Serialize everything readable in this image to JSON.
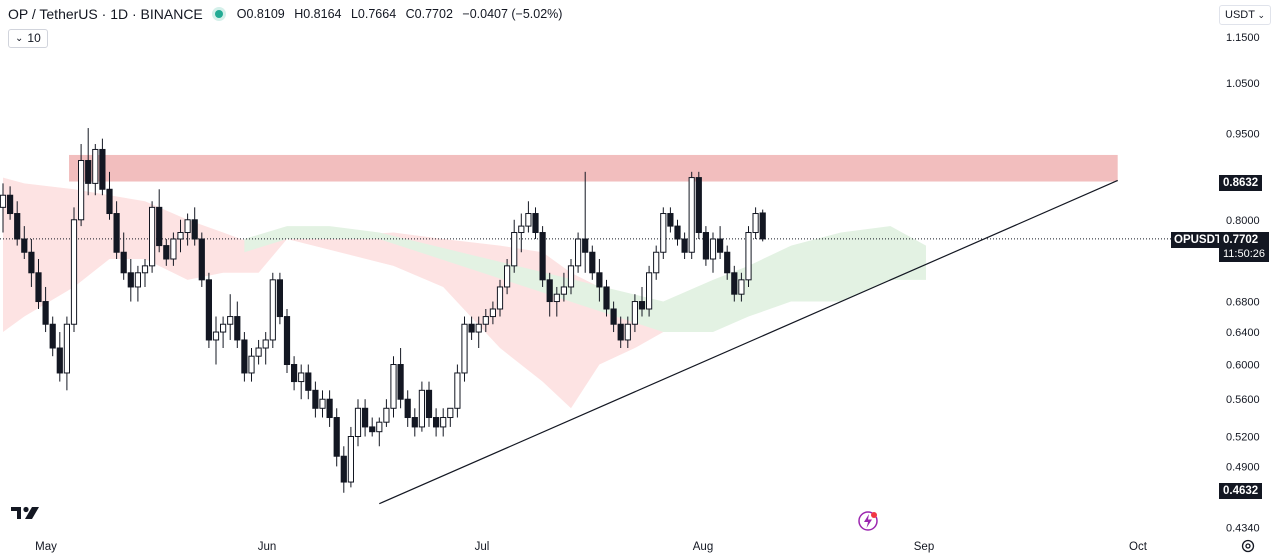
{
  "header": {
    "symbol": "OP / TetherUS · 1D · BINANCE",
    "o_label": "O",
    "o_value": "0.8109",
    "h_label": "H",
    "h_value": "0.8164",
    "l_label": "L",
    "l_value": "0.7664",
    "c_label": "C",
    "c_value": "0.7702",
    "change": "−0.0407 (−5.02%)",
    "indicator_count": "10",
    "currency": "USDT"
  },
  "price_tags": {
    "resistance_value": "0.8632",
    "symbol_tag": "OPUSDT",
    "last_value": "0.7702",
    "countdown": "11:50:26",
    "low_value": "0.4632"
  },
  "colors": {
    "up": "#131722",
    "down": "#131722",
    "resistance_zone": "#f0b3b3",
    "cloud_bear": "#fde3e3",
    "cloud_bull": "#e3f2e3",
    "trendline": "#131722"
  },
  "icons": {
    "logo": "tradingview-logo-icon",
    "settings": "gear-icon",
    "alert": "lightning-icon"
  },
  "chart_data": {
    "type": "candlestick",
    "scale": "log",
    "ylim": [
      0.425,
      1.19
    ],
    "y_ticks": [
      "1.1500",
      "1.0500",
      "0.9500",
      "0.8000",
      "0.6800",
      "0.6400",
      "0.6000",
      "0.5600",
      "0.5200",
      "0.4900",
      "0.4340"
    ],
    "x_ticks": [
      "May",
      "Jun",
      "Jul",
      "Aug",
      "Sep",
      "Oct"
    ],
    "last_close": 0.7702,
    "resistance_zone": [
      0.8632,
      0.91
    ],
    "trendline": [
      {
        "day": 3,
        "value": 0.455
      },
      {
        "day": 131,
        "value": 0.865
      }
    ],
    "candles": [
      [
        0.82,
        0.86,
        0.78,
        0.84
      ],
      [
        0.84,
        0.855,
        0.8,
        0.81
      ],
      [
        0.81,
        0.83,
        0.76,
        0.77
      ],
      [
        0.77,
        0.79,
        0.74,
        0.75
      ],
      [
        0.75,
        0.77,
        0.7,
        0.72
      ],
      [
        0.72,
        0.74,
        0.67,
        0.68
      ],
      [
        0.68,
        0.7,
        0.64,
        0.65
      ],
      [
        0.65,
        0.66,
        0.61,
        0.62
      ],
      [
        0.62,
        0.64,
        0.58,
        0.59
      ],
      [
        0.59,
        0.66,
        0.57,
        0.65
      ],
      [
        0.65,
        0.82,
        0.64,
        0.8
      ],
      [
        0.8,
        0.93,
        0.79,
        0.9
      ],
      [
        0.9,
        0.96,
        0.84,
        0.86
      ],
      [
        0.86,
        0.93,
        0.84,
        0.92
      ],
      [
        0.92,
        0.94,
        0.84,
        0.85
      ],
      [
        0.85,
        0.88,
        0.8,
        0.81
      ],
      [
        0.81,
        0.83,
        0.74,
        0.75
      ],
      [
        0.75,
        0.78,
        0.71,
        0.72
      ],
      [
        0.72,
        0.74,
        0.68,
        0.7
      ],
      [
        0.7,
        0.73,
        0.68,
        0.72
      ],
      [
        0.72,
        0.74,
        0.7,
        0.73
      ],
      [
        0.73,
        0.83,
        0.72,
        0.82
      ],
      [
        0.82,
        0.85,
        0.75,
        0.76
      ],
      [
        0.76,
        0.77,
        0.73,
        0.74
      ],
      [
        0.74,
        0.78,
        0.73,
        0.77
      ],
      [
        0.77,
        0.8,
        0.75,
        0.78
      ],
      [
        0.78,
        0.81,
        0.76,
        0.8
      ],
      [
        0.8,
        0.82,
        0.76,
        0.77
      ],
      [
        0.77,
        0.78,
        0.7,
        0.71
      ],
      [
        0.71,
        0.72,
        0.62,
        0.63
      ],
      [
        0.63,
        0.66,
        0.6,
        0.64
      ],
      [
        0.64,
        0.66,
        0.62,
        0.65
      ],
      [
        0.65,
        0.69,
        0.63,
        0.66
      ],
      [
        0.66,
        0.68,
        0.62,
        0.63
      ],
      [
        0.63,
        0.64,
        0.58,
        0.59
      ],
      [
        0.59,
        0.62,
        0.58,
        0.61
      ],
      [
        0.61,
        0.63,
        0.6,
        0.62
      ],
      [
        0.62,
        0.64,
        0.6,
        0.63
      ],
      [
        0.63,
        0.72,
        0.62,
        0.71
      ],
      [
        0.71,
        0.72,
        0.65,
        0.66
      ],
      [
        0.66,
        0.67,
        0.59,
        0.6
      ],
      [
        0.6,
        0.61,
        0.57,
        0.58
      ],
      [
        0.58,
        0.6,
        0.56,
        0.59
      ],
      [
        0.59,
        0.6,
        0.56,
        0.57
      ],
      [
        0.57,
        0.58,
        0.54,
        0.55
      ],
      [
        0.55,
        0.57,
        0.54,
        0.56
      ],
      [
        0.56,
        0.57,
        0.53,
        0.54
      ],
      [
        0.54,
        0.55,
        0.49,
        0.5
      ],
      [
        0.5,
        0.51,
        0.465,
        0.475
      ],
      [
        0.475,
        0.53,
        0.47,
        0.52
      ],
      [
        0.52,
        0.56,
        0.51,
        0.55
      ],
      [
        0.55,
        0.56,
        0.52,
        0.53
      ],
      [
        0.53,
        0.54,
        0.52,
        0.525
      ],
      [
        0.525,
        0.54,
        0.51,
        0.535
      ],
      [
        0.535,
        0.56,
        0.53,
        0.55
      ],
      [
        0.55,
        0.61,
        0.54,
        0.6
      ],
      [
        0.6,
        0.62,
        0.55,
        0.56
      ],
      [
        0.56,
        0.57,
        0.53,
        0.54
      ],
      [
        0.54,
        0.55,
        0.52,
        0.53
      ],
      [
        0.53,
        0.58,
        0.525,
        0.57
      ],
      [
        0.57,
        0.58,
        0.53,
        0.54
      ],
      [
        0.54,
        0.55,
        0.52,
        0.53
      ],
      [
        0.53,
        0.55,
        0.52,
        0.54
      ],
      [
        0.54,
        0.55,
        0.53,
        0.55
      ],
      [
        0.55,
        0.6,
        0.54,
        0.59
      ],
      [
        0.59,
        0.66,
        0.58,
        0.65
      ],
      [
        0.65,
        0.66,
        0.63,
        0.64
      ],
      [
        0.64,
        0.66,
        0.62,
        0.65
      ],
      [
        0.65,
        0.67,
        0.64,
        0.66
      ],
      [
        0.66,
        0.68,
        0.65,
        0.67
      ],
      [
        0.67,
        0.71,
        0.66,
        0.7
      ],
      [
        0.7,
        0.74,
        0.69,
        0.73
      ],
      [
        0.73,
        0.8,
        0.72,
        0.78
      ],
      [
        0.78,
        0.81,
        0.75,
        0.79
      ],
      [
        0.79,
        0.83,
        0.78,
        0.81
      ],
      [
        0.81,
        0.82,
        0.77,
        0.78
      ],
      [
        0.78,
        0.79,
        0.7,
        0.71
      ],
      [
        0.71,
        0.72,
        0.66,
        0.68
      ],
      [
        0.68,
        0.7,
        0.66,
        0.69
      ],
      [
        0.69,
        0.72,
        0.68,
        0.7
      ],
      [
        0.7,
        0.74,
        0.69,
        0.73
      ],
      [
        0.73,
        0.78,
        0.72,
        0.77
      ],
      [
        0.77,
        0.88,
        0.72,
        0.75
      ],
      [
        0.75,
        0.76,
        0.71,
        0.72
      ],
      [
        0.72,
        0.74,
        0.68,
        0.7
      ],
      [
        0.7,
        0.71,
        0.66,
        0.67
      ],
      [
        0.67,
        0.68,
        0.64,
        0.65
      ],
      [
        0.65,
        0.66,
        0.62,
        0.63
      ],
      [
        0.63,
        0.66,
        0.62,
        0.65
      ],
      [
        0.65,
        0.69,
        0.64,
        0.68
      ],
      [
        0.68,
        0.7,
        0.66,
        0.67
      ],
      [
        0.67,
        0.73,
        0.66,
        0.72
      ],
      [
        0.72,
        0.76,
        0.71,
        0.75
      ],
      [
        0.75,
        0.82,
        0.74,
        0.81
      ],
      [
        0.81,
        0.82,
        0.78,
        0.79
      ],
      [
        0.79,
        0.8,
        0.76,
        0.77
      ],
      [
        0.77,
        0.78,
        0.74,
        0.75
      ],
      [
        0.75,
        0.88,
        0.74,
        0.87
      ],
      [
        0.87,
        0.88,
        0.77,
        0.78
      ],
      [
        0.78,
        0.79,
        0.73,
        0.74
      ],
      [
        0.74,
        0.78,
        0.72,
        0.77
      ],
      [
        0.77,
        0.79,
        0.74,
        0.75
      ],
      [
        0.75,
        0.76,
        0.71,
        0.72
      ],
      [
        0.72,
        0.73,
        0.68,
        0.69
      ],
      [
        0.69,
        0.72,
        0.68,
        0.71
      ],
      [
        0.71,
        0.79,
        0.7,
        0.78
      ],
      [
        0.78,
        0.82,
        0.77,
        0.81
      ],
      [
        0.8109,
        0.8164,
        0.7664,
        0.7702
      ]
    ],
    "cloud_bear": [
      [
        0,
        0.87,
        0.64
      ],
      [
        3,
        0.86,
        0.66
      ],
      [
        10,
        0.85,
        0.7
      ],
      [
        15,
        0.84,
        0.74
      ],
      [
        20,
        0.83,
        0.74
      ],
      [
        26,
        0.8,
        0.71
      ],
      [
        31,
        0.78,
        0.72
      ],
      [
        36,
        0.76,
        0.72
      ],
      [
        40,
        0.77,
        0.77
      ],
      [
        55,
        0.78,
        0.73
      ],
      [
        62,
        0.77,
        0.7
      ],
      [
        70,
        0.76,
        0.62
      ],
      [
        76,
        0.75,
        0.58
      ],
      [
        80,
        0.72,
        0.55
      ],
      [
        84,
        0.7,
        0.6
      ],
      [
        89,
        0.66,
        0.62
      ],
      [
        93,
        0.64,
        0.64
      ]
    ],
    "cloud_bull": [
      [
        34,
        0.77,
        0.75
      ],
      [
        40,
        0.79,
        0.77
      ],
      [
        46,
        0.79,
        0.77
      ],
      [
        53,
        0.78,
        0.77
      ],
      [
        93,
        0.68,
        0.64
      ],
      [
        100,
        0.71,
        0.64
      ],
      [
        105,
        0.73,
        0.66
      ],
      [
        111,
        0.76,
        0.68
      ],
      [
        118,
        0.78,
        0.68
      ],
      [
        125,
        0.79,
        0.71
      ],
      [
        130,
        0.76,
        0.71
      ]
    ]
  }
}
